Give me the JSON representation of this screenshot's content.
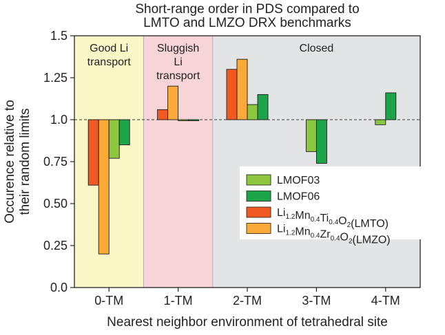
{
  "chart_data": {
    "type": "bar",
    "title": [
      "Short-range order in PDS compared to",
      "LMTO and LMZO DRX benchmarks"
    ],
    "xlabel": "Nearest neighbor environment of tetrahedral site",
    "ylabel": [
      "Occurence relative to",
      "their random limits"
    ],
    "ylim": [
      0.0,
      1.5
    ],
    "baseline": 1.0,
    "yticks": [
      "0.0",
      "0.25",
      "0.50",
      "0.75",
      "1.0",
      "1.25",
      "1.5"
    ],
    "categories": [
      "0-TM",
      "1-TM",
      "2-TM",
      "3-TM",
      "4-TM"
    ],
    "series": [
      {
        "name": "LMTO",
        "color": "#f05a22",
        "values": [
          0.61,
          1.06,
          1.3,
          null,
          null
        ]
      },
      {
        "name": "LMZO",
        "color": "#fbaa3a",
        "values": [
          0.2,
          1.2,
          1.36,
          null,
          null
        ]
      },
      {
        "name": "LMOF03",
        "color": "#8dc63f",
        "values": [
          0.77,
          0.995,
          1.09,
          0.81,
          0.97
        ]
      },
      {
        "name": "LMOF06",
        "color": "#1da44a",
        "values": [
          0.85,
          0.995,
          1.15,
          0.74,
          1.16
        ]
      }
    ],
    "regions": [
      {
        "label": [
          "Good Li",
          "transport"
        ],
        "color": "#fbf6c6"
      },
      {
        "label": [
          "Sluggish",
          "Li",
          "transport"
        ],
        "color": "#f6d4d7"
      },
      {
        "label": [
          "Closed"
        ],
        "color": "#e3e4e6"
      }
    ],
    "legend": {
      "position": "lower-right",
      "entries": [
        {
          "series": "LMOF03",
          "color": "#8dc63f",
          "parts": [
            {
              "t": "LMOF03",
              "sub": false
            }
          ]
        },
        {
          "series": "LMOF06",
          "color": "#1da44a",
          "parts": [
            {
              "t": "LMOF06",
              "sub": false
            }
          ]
        },
        {
          "series": "LMTO",
          "color": "#f05a22",
          "parts": [
            {
              "t": "Li",
              "sub": false
            },
            {
              "t": "1.2",
              "sub": true
            },
            {
              "t": "Mn",
              "sub": false
            },
            {
              "t": "0.4",
              "sub": true
            },
            {
              "t": "Ti",
              "sub": false
            },
            {
              "t": "0.4",
              "sub": true
            },
            {
              "t": "O",
              "sub": false
            },
            {
              "t": "2",
              "sub": true
            },
            {
              "t": "(LMTO)",
              "sub": false
            }
          ]
        },
        {
          "series": "LMZO",
          "color": "#fbaa3a",
          "parts": [
            {
              "t": "Li",
              "sub": false
            },
            {
              "t": "1.2",
              "sub": true
            },
            {
              "t": "Mn",
              "sub": false
            },
            {
              "t": "0.4",
              "sub": true
            },
            {
              "t": "Zr",
              "sub": false
            },
            {
              "t": "0.4",
              "sub": true
            },
            {
              "t": "O",
              "sub": false
            },
            {
              "t": "2",
              "sub": true
            },
            {
              "t": "(LMZO)",
              "sub": false
            }
          ]
        }
      ]
    }
  }
}
